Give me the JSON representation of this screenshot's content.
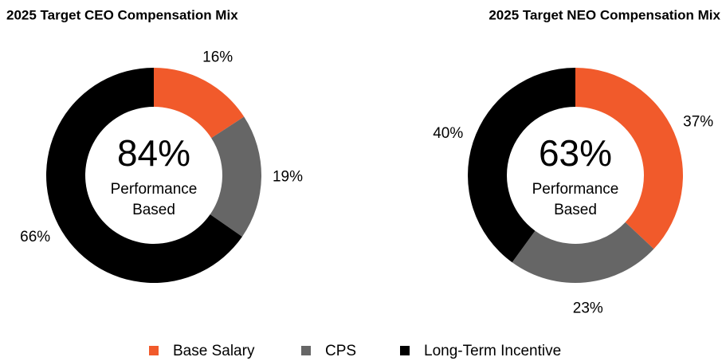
{
  "chart_data": [
    {
      "type": "donut",
      "title": "2025 Target CEO Compensation Mix",
      "categories": [
        "Base Salary",
        "CPS",
        "Long-Term Incentive"
      ],
      "values": [
        16,
        19,
        66
      ],
      "value_labels": [
        "16%",
        "19%",
        "66%"
      ],
      "colors": [
        "#f15a2b",
        "#666666",
        "#000000"
      ],
      "center_text": "84%",
      "center_label": "Performance Based"
    },
    {
      "type": "donut",
      "title": "2025 Target NEO Compensation Mix",
      "categories": [
        "Base Salary",
        "CPS",
        "Long-Term Incentive"
      ],
      "values": [
        37,
        23,
        40
      ],
      "value_labels": [
        "37%",
        "23%",
        "40%"
      ],
      "colors": [
        "#f15a2b",
        "#666666",
        "#000000"
      ],
      "center_text": "63%",
      "center_label": "Performance Based"
    }
  ]
}
